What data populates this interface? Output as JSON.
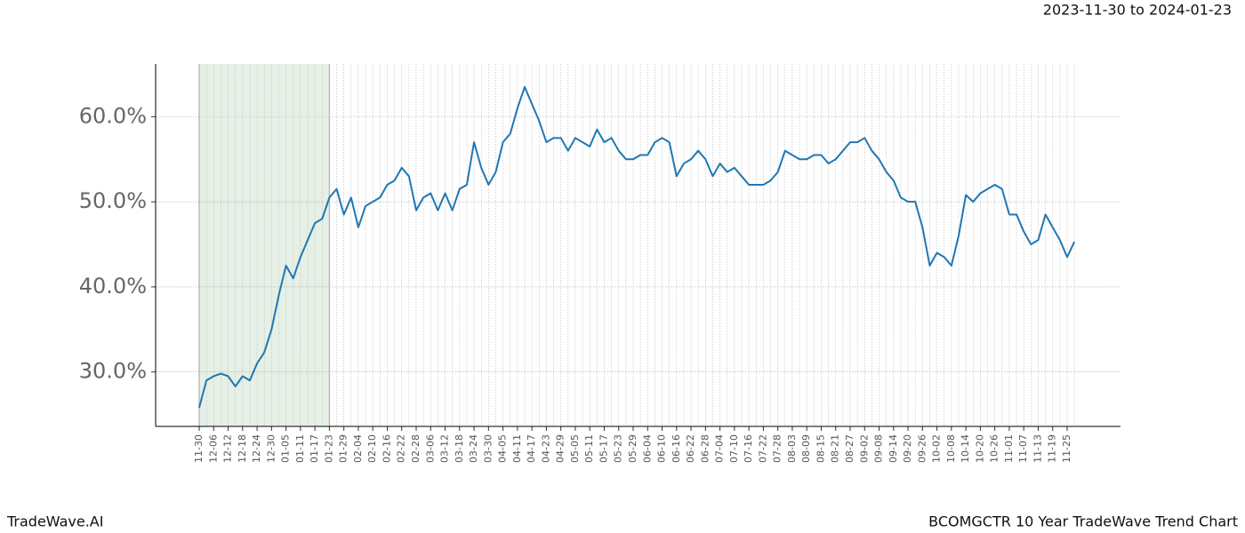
{
  "chart_data": {
    "type": "line",
    "title": "2023-11-30 to 2024-01-23",
    "footer_left": "TradeWave.AI",
    "footer_right": "BCOMGCTR 10 Year TradeWave Trend Chart",
    "categories": [
      "11-30",
      null,
      "12-06",
      null,
      "12-12",
      null,
      "12-18",
      null,
      "12-24",
      null,
      "12-30",
      null,
      "01-05",
      null,
      "01-11",
      null,
      "01-17",
      null,
      "01-23",
      null,
      "01-29",
      null,
      "02-04",
      null,
      "02-10",
      null,
      "02-16",
      null,
      "02-22",
      null,
      "02-28",
      null,
      "03-06",
      null,
      "03-12",
      null,
      "03-18",
      null,
      "03-24",
      null,
      "03-30",
      null,
      "04-05",
      null,
      "04-11",
      null,
      "04-17",
      null,
      "04-23",
      null,
      "04-29",
      null,
      "05-05",
      null,
      "05-11",
      null,
      "05-17",
      null,
      "05-23",
      null,
      "05-29",
      null,
      "06-04",
      null,
      "06-10",
      null,
      "06-16",
      null,
      "06-22",
      null,
      "06-28",
      null,
      "07-04",
      null,
      "07-10",
      null,
      "07-16",
      null,
      "07-22",
      null,
      "07-28",
      null,
      "08-03",
      null,
      "08-09",
      null,
      "08-15",
      null,
      "08-21",
      null,
      "08-27",
      null,
      "09-02",
      null,
      "09-08",
      null,
      "09-14",
      null,
      "09-20",
      null,
      "09-26",
      null,
      "10-02",
      null,
      "10-08",
      null,
      "10-14",
      null,
      "10-20",
      null,
      "10-26",
      null,
      "11-01",
      null,
      "11-07",
      null,
      "11-13",
      null,
      "11-19",
      null,
      "11-25",
      null
    ],
    "series": [
      {
        "name": "BCOMGCTR",
        "color": "#1f77b4",
        "values": [
          25.8,
          29.0,
          29.5,
          29.8,
          29.5,
          28.3,
          29.5,
          29.0,
          31.0,
          32.3,
          35.0,
          39.0,
          42.5,
          41.0,
          43.5,
          45.5,
          47.5,
          48.0,
          50.5,
          51.5,
          48.5,
          50.5,
          47.0,
          49.5,
          50.0,
          50.5,
          52.0,
          52.5,
          54.0,
          53.0,
          49.0,
          50.5,
          51.0,
          49.0,
          51.0,
          49.0,
          51.5,
          52.0,
          57.0,
          54.0,
          52.0,
          53.5,
          57.0,
          58.0,
          61.0,
          63.5,
          61.5,
          59.5,
          57.0,
          57.5,
          57.5,
          56.0,
          57.5,
          57.0,
          56.5,
          58.5,
          57.0,
          57.5,
          56.0,
          55.0,
          55.0,
          55.5,
          55.5,
          57.0,
          57.5,
          57.0,
          53.0,
          54.5,
          55.0,
          56.0,
          55.0,
          53.0,
          54.5,
          53.5,
          54.0,
          53.0,
          52.0,
          52.0,
          52.0,
          52.5,
          53.5,
          56.0,
          55.5,
          55.0,
          55.0,
          55.5,
          55.5,
          54.5,
          55.0,
          56.0,
          57.0,
          57.0,
          57.5,
          56.0,
          55.0,
          53.5,
          52.5,
          50.5,
          50.0,
          50.0,
          47.0,
          42.5,
          44.0,
          43.5,
          42.5,
          46.0,
          50.8,
          50.0,
          51.0,
          51.5,
          52.0,
          51.5,
          48.5,
          48.5,
          46.5,
          45.0,
          45.5,
          48.5,
          47.0,
          45.5,
          43.5,
          45.3
        ]
      }
    ],
    "shaded_span": [
      "11-30",
      "01-23"
    ],
    "shade_color": "#e6f0e6",
    "ylim": [
      23.6,
      66.2
    ],
    "yticks": [
      {
        "value": 30,
        "label": "30.0%"
      },
      {
        "value": 40,
        "label": "40.0%"
      },
      {
        "value": 50,
        "label": "50.0%"
      },
      {
        "value": 60,
        "label": "60.0%"
      }
    ],
    "grid": true
  }
}
